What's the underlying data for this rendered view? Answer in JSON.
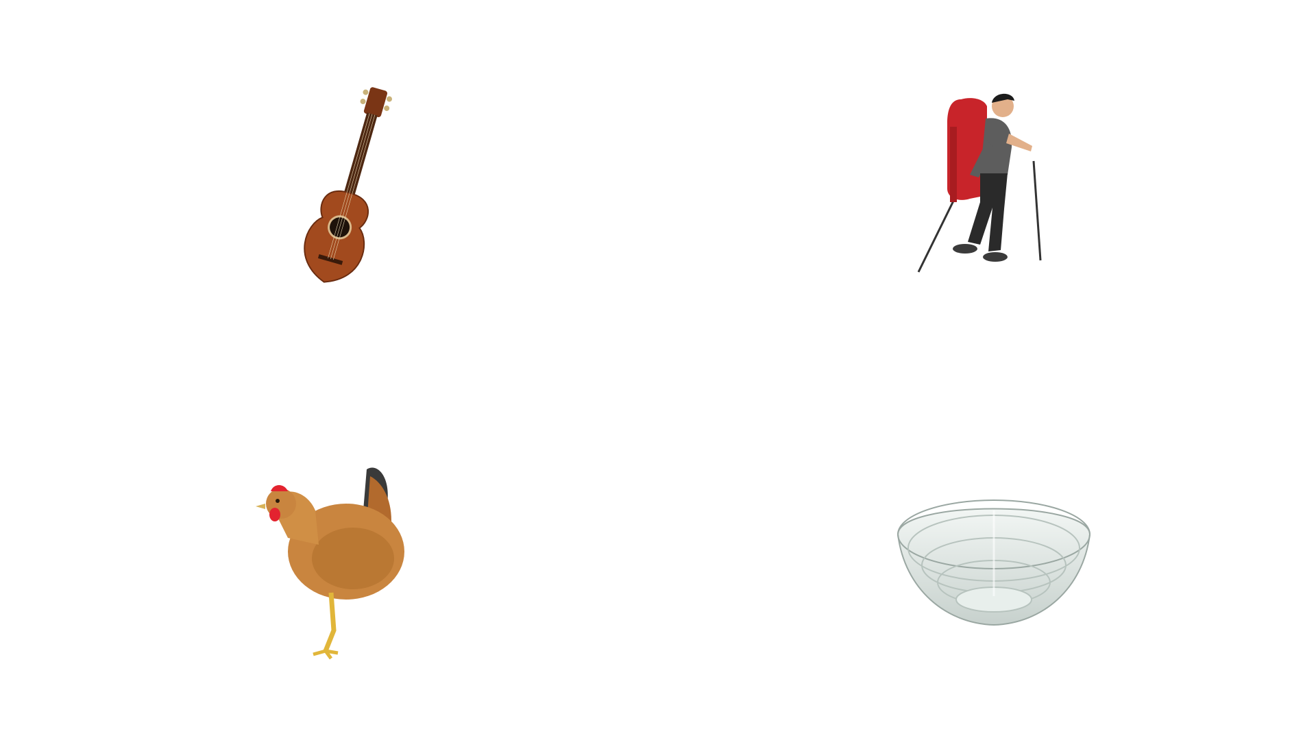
{
  "images": [
    {
      "name": "acoustic-guitar",
      "icon": "guitar-icon",
      "colors": {
        "body": "#a24a1e",
        "neck": "#5a2e14",
        "hole": "#1e120a"
      }
    },
    {
      "name": "hiker-with-backpack",
      "icon": "hiker-icon",
      "colors": {
        "backpack": "#c8242a",
        "shirt": "#5d5d5d",
        "pants": "#2a2a2a",
        "skin": "#e2b08a"
      }
    },
    {
      "name": "hen",
      "icon": "hen-icon",
      "colors": {
        "feathers": "#c9853f",
        "comb": "#e3232f",
        "legs": "#e1b63a",
        "tail": "#3a3a3a"
      }
    },
    {
      "name": "glass-bowl",
      "icon": "bowl-icon",
      "colors": {
        "glass": "#d7dfdc",
        "edge": "#9aa7a2"
      }
    }
  ]
}
